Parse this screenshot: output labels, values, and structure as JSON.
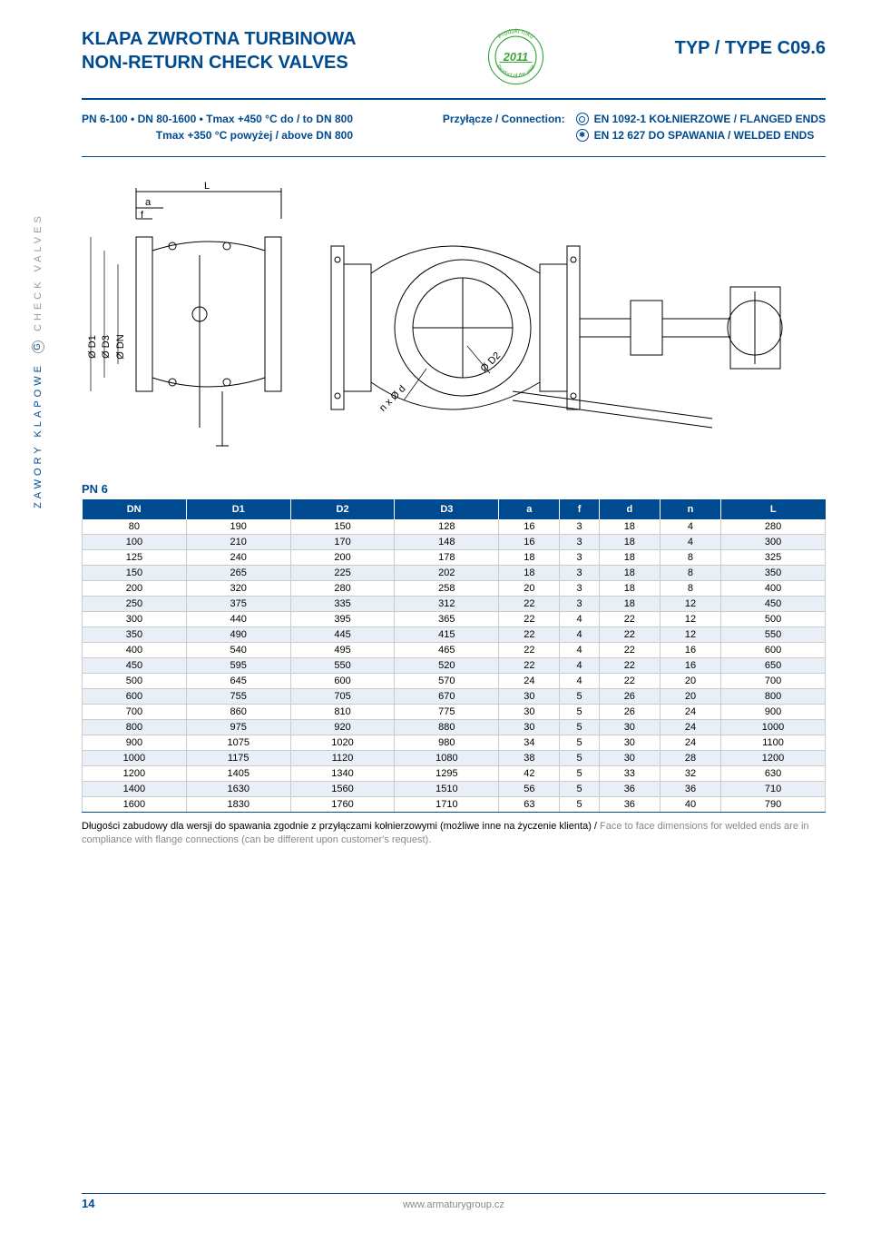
{
  "title_line1": "KLAPA ZWROTNA TURBINOWA",
  "title_line2": "NON-RETURN CHECK VALVES",
  "type_label": "TYP / TYPE C09.6",
  "badge": {
    "top_text": "Produkt roku",
    "year": "2011",
    "bottom_text": "Product of the year",
    "color_green": "#3ca43c"
  },
  "spec_left_line1": "PN 6-100 • DN 80-1600 • Tmax +450 °C do / to DN 800",
  "spec_left_line2": "Tmax +350 °C powyżej / above DN 800",
  "connection_label": "Przyłącze / Connection:",
  "conn_line1": "EN 1092-1 KOŁNIERZOWE / FLANGED ENDS",
  "conn_line2": "EN 12 627  DO SPAWANIA / WELDED ENDS",
  "side_label_pl": "ZAWORY KLAPOWE",
  "side_label_en": "CHECK VALVES",
  "diagram": {
    "L": "L",
    "a": "a",
    "f": "f",
    "d1": "Ø D1",
    "d3": "Ø D3",
    "dn": "Ø DN",
    "d2": "Ø D2",
    "nxd": "n x Ø d"
  },
  "table": {
    "title": "PN 6",
    "columns": [
      "DN",
      "D1",
      "D2",
      "D3",
      "a",
      "f",
      "d",
      "n",
      "L"
    ],
    "header_bg": "#004a8f",
    "shaded_bg": "#e8eff7",
    "rows": [
      [
        "80",
        "190",
        "150",
        "128",
        "16",
        "3",
        "18",
        "4",
        "280"
      ],
      [
        "100",
        "210",
        "170",
        "148",
        "16",
        "3",
        "18",
        "4",
        "300"
      ],
      [
        "125",
        "240",
        "200",
        "178",
        "18",
        "3",
        "18",
        "8",
        "325"
      ],
      [
        "150",
        "265",
        "225",
        "202",
        "18",
        "3",
        "18",
        "8",
        "350"
      ],
      [
        "200",
        "320",
        "280",
        "258",
        "20",
        "3",
        "18",
        "8",
        "400"
      ],
      [
        "250",
        "375",
        "335",
        "312",
        "22",
        "3",
        "18",
        "12",
        "450"
      ],
      [
        "300",
        "440",
        "395",
        "365",
        "22",
        "4",
        "22",
        "12",
        "500"
      ],
      [
        "350",
        "490",
        "445",
        "415",
        "22",
        "4",
        "22",
        "12",
        "550"
      ],
      [
        "400",
        "540",
        "495",
        "465",
        "22",
        "4",
        "22",
        "16",
        "600"
      ],
      [
        "450",
        "595",
        "550",
        "520",
        "22",
        "4",
        "22",
        "16",
        "650"
      ],
      [
        "500",
        "645",
        "600",
        "570",
        "24",
        "4",
        "22",
        "20",
        "700"
      ],
      [
        "600",
        "755",
        "705",
        "670",
        "30",
        "5",
        "26",
        "20",
        "800"
      ],
      [
        "700",
        "860",
        "810",
        "775",
        "30",
        "5",
        "26",
        "24",
        "900"
      ],
      [
        "800",
        "975",
        "920",
        "880",
        "30",
        "5",
        "30",
        "24",
        "1000"
      ],
      [
        "900",
        "1075",
        "1020",
        "980",
        "34",
        "5",
        "30",
        "24",
        "1100"
      ],
      [
        "1000",
        "1175",
        "1120",
        "1080",
        "38",
        "5",
        "30",
        "28",
        "1200"
      ],
      [
        "1200",
        "1405",
        "1340",
        "1295",
        "42",
        "5",
        "33",
        "32",
        "630"
      ],
      [
        "1400",
        "1630",
        "1560",
        "1510",
        "56",
        "5",
        "36",
        "36",
        "710"
      ],
      [
        "1600",
        "1830",
        "1760",
        "1710",
        "63",
        "5",
        "36",
        "40",
        "790"
      ]
    ]
  },
  "footnote_pl": "Długości zabudowy dla wersji do spawania zgodnie z przyłączami kołnierzowymi (możliwe inne na życzenie klienta) / ",
  "footnote_en": "Face to face dimensions for welded ends are in compliance with flange connections (can be different upon customer's request).",
  "footer_url": "www.armaturygroup.cz",
  "page_number": "14",
  "colors": {
    "primary": "#004a8f",
    "gray": "#888888"
  }
}
